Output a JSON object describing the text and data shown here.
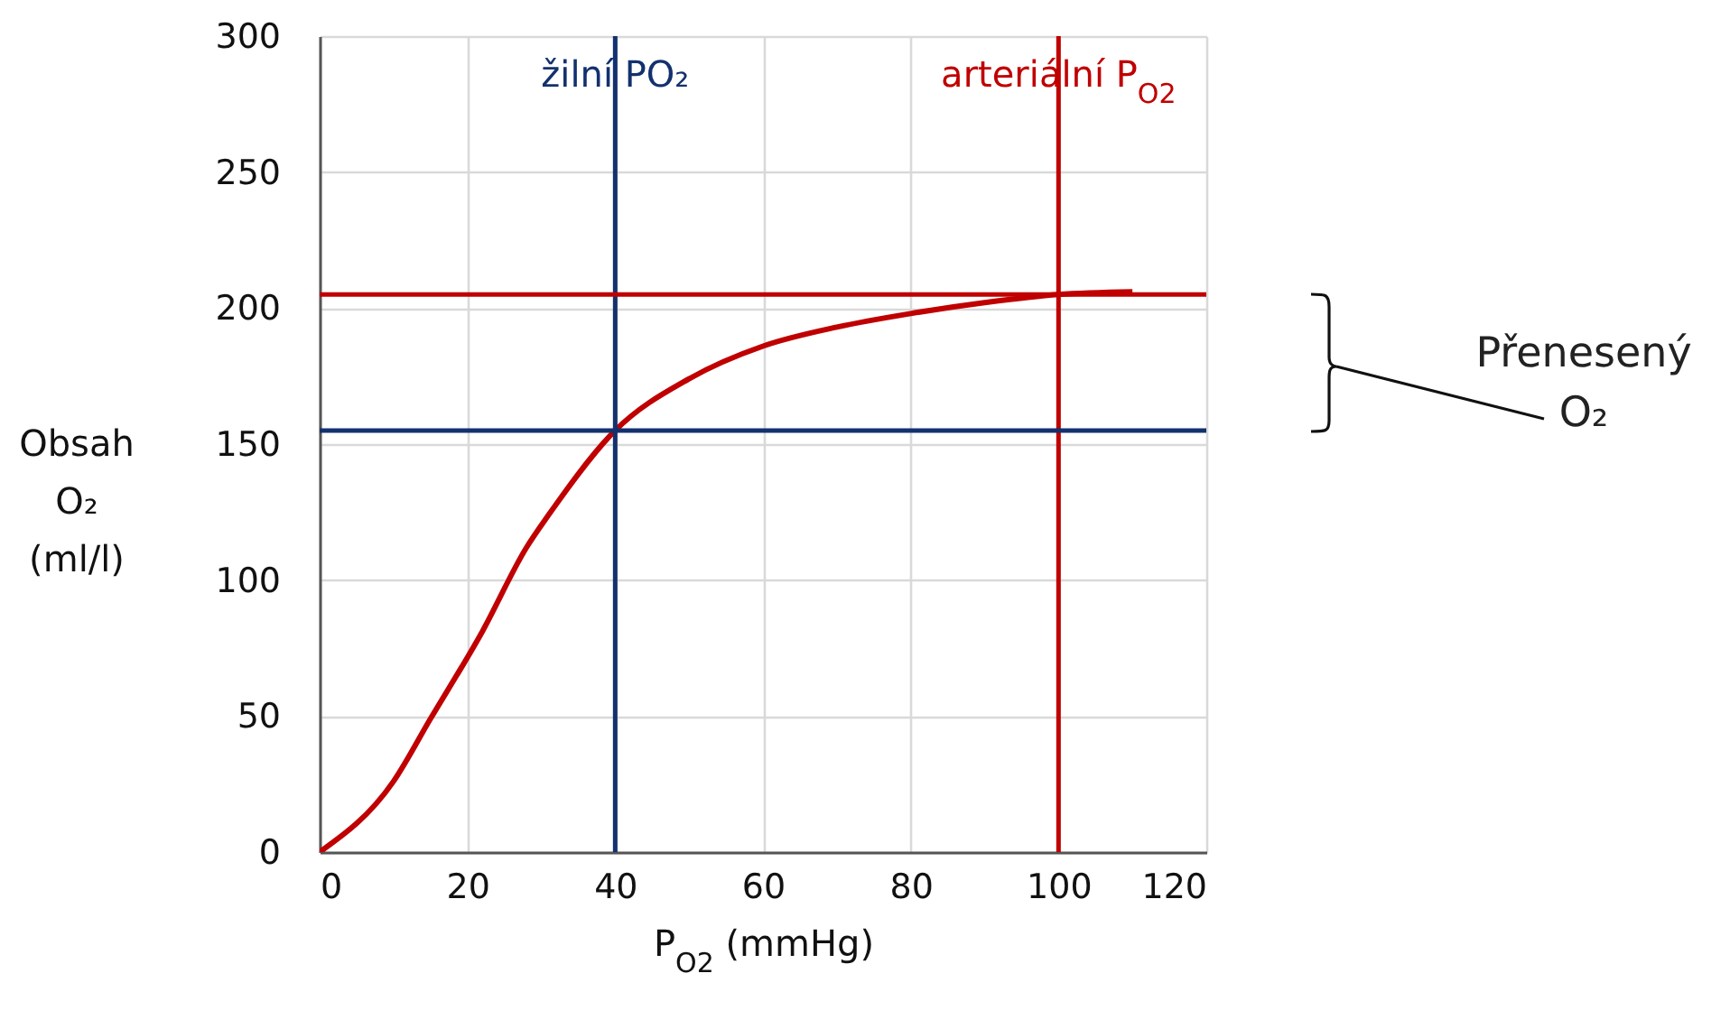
{
  "chart_data": {
    "type": "line",
    "xlabel": "P$_{O2}$ (mmHg)",
    "ylabel": "Obsah O₂ (ml/l)",
    "x": [
      0,
      10,
      15,
      22,
      28,
      31,
      40,
      50,
      60,
      70,
      80,
      90,
      100,
      110
    ],
    "series": [
      {
        "color": "#c00000",
        "values": [
          0,
          26,
          49,
          81,
          112,
          124,
          155,
          174,
          186,
          193,
          198,
          202,
          205,
          206
        ]
      }
    ],
    "xlim": [
      0,
      120
    ],
    "xticks": [
      0,
      20,
      40,
      60,
      80,
      100,
      120
    ],
    "ylim": [
      0,
      300
    ],
    "yticks": [
      0,
      50,
      100,
      150,
      200,
      250,
      300
    ],
    "grid": true,
    "marker": "none",
    "line_style": "solid",
    "ref_lines": [
      {
        "axis": "x",
        "value": 40,
        "label": "žilní PO₂",
        "color": "#13316e"
      },
      {
        "axis": "x",
        "value": 100,
        "label": "arteriální P$_{O2}$",
        "color": "#c00000"
      },
      {
        "axis": "y",
        "value": 205,
        "color": "#c00000"
      },
      {
        "axis": "y",
        "value": 155,
        "color": "#13316e"
      }
    ],
    "annotations": [
      "Přenesený O₂"
    ]
  }
}
